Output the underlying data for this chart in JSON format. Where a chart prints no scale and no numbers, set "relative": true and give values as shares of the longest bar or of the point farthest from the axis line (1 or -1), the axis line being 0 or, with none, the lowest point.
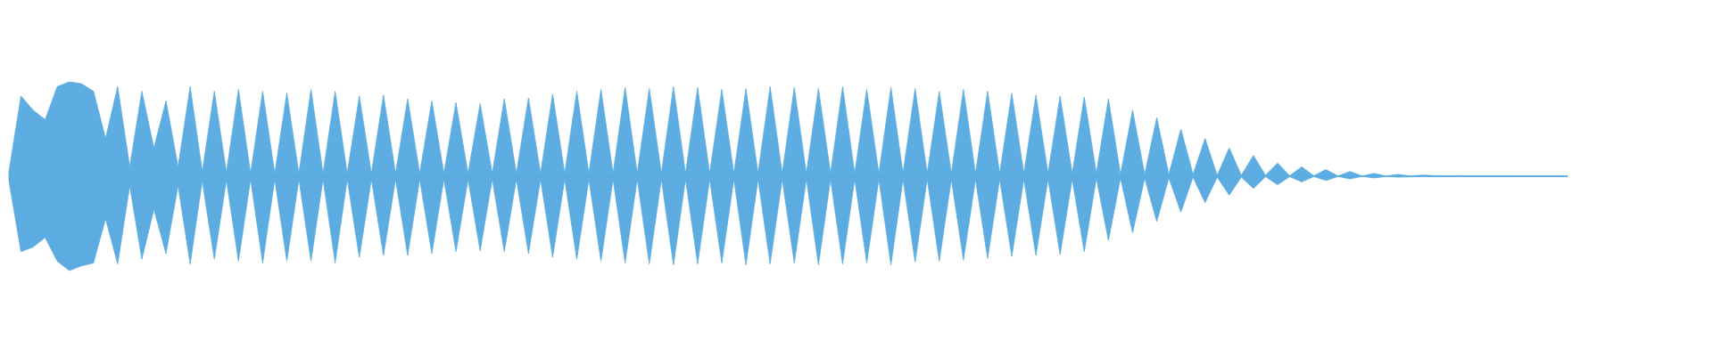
{
  "chart_data": {
    "type": "area",
    "relative": true,
    "categories": [
      null,
      null,
      null,
      null,
      null,
      null,
      null,
      null,
      null,
      null,
      null,
      null,
      null,
      null,
      null,
      null,
      null,
      null,
      null,
      null,
      null,
      null,
      null,
      null,
      null,
      null,
      null,
      null,
      null,
      null,
      null,
      null,
      null,
      null,
      null,
      null,
      null,
      null,
      null,
      null,
      null,
      null,
      null,
      null,
      null,
      null,
      null,
      null,
      null,
      null,
      null,
      null,
      null,
      null,
      null,
      null,
      null,
      null,
      null,
      null,
      null,
      null,
      null,
      null,
      null,
      null,
      null,
      null,
      null,
      null,
      null,
      null,
      null,
      null,
      null,
      null,
      null,
      null,
      null,
      null,
      null,
      null,
      null,
      null,
      null,
      null,
      null,
      null,
      null,
      null,
      null,
      null,
      null,
      null,
      null,
      null,
      null,
      null,
      null,
      null,
      null,
      null,
      null,
      null,
      null,
      null,
      null,
      null,
      null,
      null,
      null,
      null,
      null,
      null,
      null,
      null,
      null,
      null,
      null,
      null,
      null,
      null,
      null,
      null,
      null,
      null,
      null,
      null,
      null,
      null
    ],
    "series": [
      {
        "color": "#5dade2",
        "values": [
          0.05,
          0.85,
          0.7,
          0.6,
          0.95,
          1.0,
          0.98,
          0.9,
          0.4,
          0.95,
          0.1,
          0.9,
          0.3,
          0.8,
          0.1,
          0.95,
          0.05,
          0.9,
          0.04,
          0.92,
          0.03,
          0.9,
          0.03,
          0.88,
          0.03,
          0.92,
          0.03,
          0.9,
          0.03,
          0.85,
          0.03,
          0.86,
          0.03,
          0.82,
          0.03,
          0.8,
          0.03,
          0.78,
          0.03,
          0.77,
          0.03,
          0.82,
          0.03,
          0.83,
          0.03,
          0.87,
          0.03,
          0.9,
          0.03,
          0.92,
          0.03,
          0.94,
          0.03,
          0.93,
          0.03,
          0.95,
          0.03,
          0.94,
          0.03,
          0.92,
          0.03,
          0.93,
          0.03,
          0.95,
          0.03,
          0.94,
          0.03,
          0.93,
          0.03,
          0.95,
          0.03,
          0.92,
          0.03,
          0.94,
          0.03,
          0.93,
          0.03,
          0.9,
          0.03,
          0.92,
          0.03,
          0.9,
          0.03,
          0.88,
          0.03,
          0.86,
          0.03,
          0.85,
          0.03,
          0.84,
          0.03,
          0.82,
          0.02,
          0.7,
          0.02,
          0.62,
          0.02,
          0.5,
          0.02,
          0.4,
          0.01,
          0.3,
          0.01,
          0.22,
          0.01,
          0.14,
          0.005,
          0.1,
          0.005,
          0.07,
          0.003,
          0.05,
          0.003,
          0.03,
          0.002,
          0.02,
          0.002,
          0.012,
          0.006,
          0.004,
          0.006,
          0.004,
          0.005,
          0.004,
          0.005,
          0.004,
          0.005,
          0.004,
          0.004,
          0.003
        ]
      },
      {
        "color": "#5cace1",
        "values": [
          -0.05,
          -0.8,
          -0.75,
          -0.65,
          -0.9,
          -1.0,
          -0.95,
          -0.92,
          -0.45,
          -0.93,
          -0.1,
          -0.88,
          -0.35,
          -0.82,
          -0.1,
          -0.93,
          -0.05,
          -0.88,
          -0.04,
          -0.9,
          -0.03,
          -0.92,
          -0.03,
          -0.9,
          -0.03,
          -0.9,
          -0.03,
          -0.92,
          -0.03,
          -0.86,
          -0.03,
          -0.84,
          -0.03,
          -0.84,
          -0.03,
          -0.82,
          -0.03,
          -0.8,
          -0.03,
          -0.79,
          -0.03,
          -0.8,
          -0.03,
          -0.82,
          -0.03,
          -0.86,
          -0.03,
          -0.88,
          -0.03,
          -0.9,
          -0.03,
          -0.92,
          -0.03,
          -0.93,
          -0.03,
          -0.94,
          -0.03,
          -0.93,
          -0.03,
          -0.92,
          -0.03,
          -0.94,
          -0.03,
          -0.93,
          -0.03,
          -0.92,
          -0.03,
          -0.94,
          -0.03,
          -0.93,
          -0.03,
          -0.92,
          -0.03,
          -0.94,
          -0.03,
          -0.91,
          -0.03,
          -0.9,
          -0.03,
          -0.89,
          -0.03,
          -0.87,
          -0.03,
          -0.85,
          -0.03,
          -0.84,
          -0.03,
          -0.83,
          -0.03,
          -0.8,
          -0.02,
          -0.68,
          -0.02,
          -0.6,
          -0.02,
          -0.48,
          -0.02,
          -0.38,
          -0.01,
          -0.28,
          -0.01,
          -0.2,
          -0.01,
          -0.13,
          -0.005,
          -0.09,
          -0.005,
          -0.06,
          -0.003,
          -0.045,
          -0.003,
          -0.028,
          -0.002,
          -0.018,
          -0.002,
          -0.01,
          -0.006,
          -0.004,
          -0.006,
          -0.004,
          -0.005,
          -0.004,
          -0.005,
          -0.004,
          -0.005,
          -0.004,
          -0.004,
          -0.003,
          -0.003,
          -0.003
        ]
      }
    ]
  }
}
